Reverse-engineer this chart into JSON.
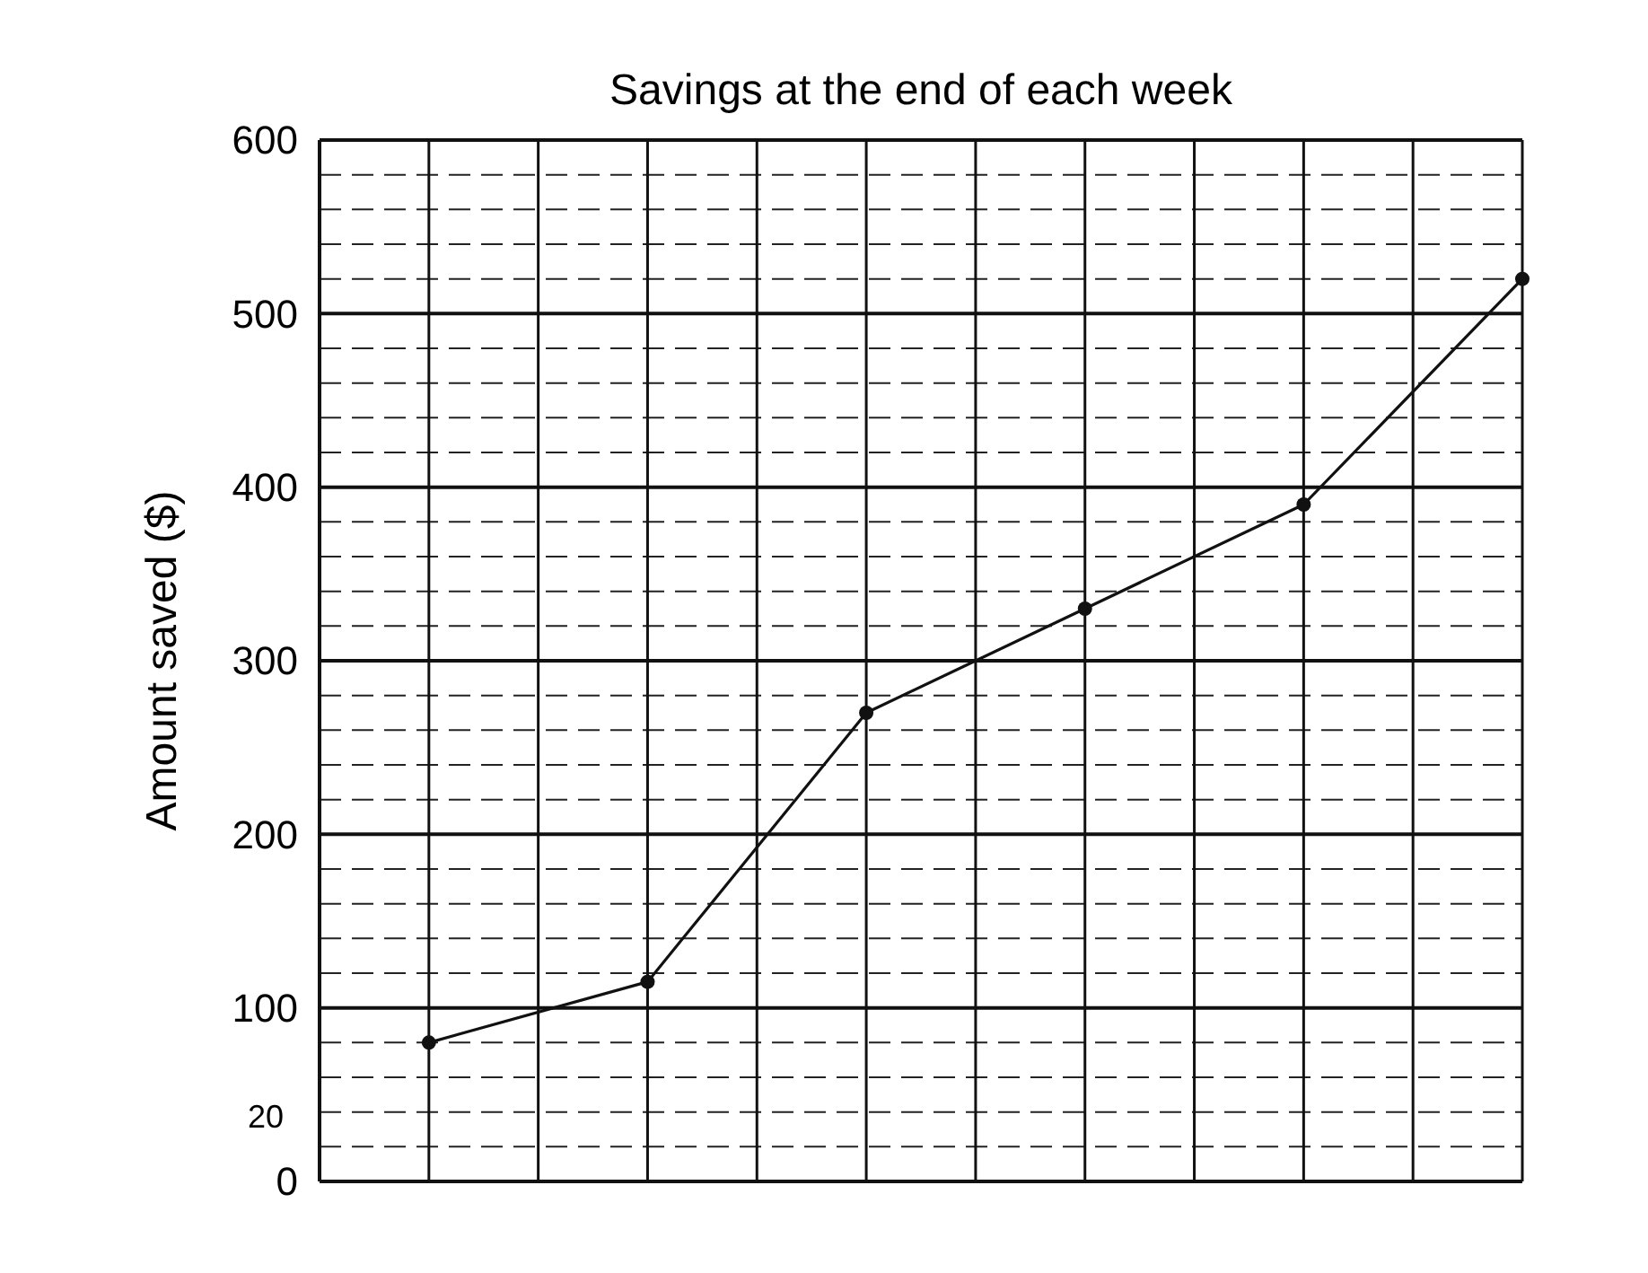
{
  "chart_data": {
    "type": "line",
    "title": "Savings at the end of each week",
    "ylabel": "Amount saved ($)",
    "categories": [
      null,
      null,
      null,
      null,
      null,
      null
    ],
    "series": [
      {
        "color": "#111111",
        "values": [
          80,
          115,
          270,
          330,
          390,
          520
        ]
      }
    ],
    "ylim": [
      0,
      600
    ],
    "yticks": [
      0,
      100,
      200,
      300,
      400,
      500,
      600
    ],
    "grid": true,
    "marker": "circle",
    "line_style": "solid",
    "annotations": [
      "20"
    ]
  }
}
